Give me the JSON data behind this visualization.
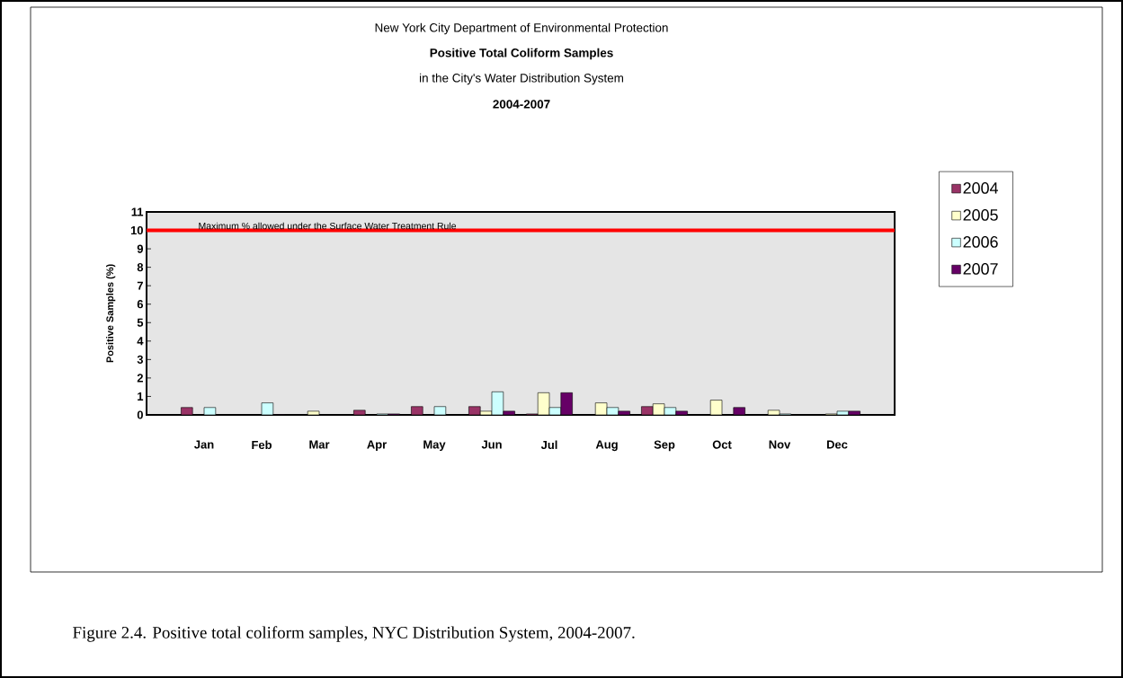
{
  "chart_data": {
    "type": "bar",
    "title": "Positive Total Coliform Samples",
    "subtitle": "in the City's Water Distribution System",
    "annotations": [
      "New York City Department of Environmental Protection",
      "2004-2007",
      "Figure 2.4.  Positive total coliform samples, NYC Distribution System, 2004-2007."
    ],
    "ylabel": "Positive Samples (%)",
    "categories": [
      "Jan",
      "Feb",
      "Mar",
      "Apr",
      "May",
      "Jun",
      "Jul",
      "Aug",
      "Sep",
      "Oct",
      "Nov",
      "Dec"
    ],
    "series": [
      {
        "name": "2004",
        "color": "#993366",
        "values": [
          0.4,
          0,
          0,
          0.25,
          0.45,
          0.45,
          0.05,
          0,
          0.45,
          0,
          0,
          0
        ]
      },
      {
        "name": "2005",
        "color": "#ffffcc",
        "values": [
          0,
          0,
          0.2,
          0,
          0,
          0.2,
          1.2,
          0.65,
          0.6,
          0.8,
          0.25,
          0.05
        ]
      },
      {
        "name": "2006",
        "color": "#ccffff",
        "values": [
          0.4,
          0.65,
          0,
          0.05,
          0.45,
          1.25,
          0.4,
          0.4,
          0.4,
          0,
          0.05,
          0.2
        ]
      },
      {
        "name": "2007",
        "color": "#660066",
        "values": [
          0,
          0.02,
          0,
          0.05,
          0,
          0.2,
          1.2,
          0.2,
          0.2,
          0.4,
          0,
          0.2
        ]
      }
    ],
    "ylim": [
      0,
      11
    ],
    "yticks": [
      0,
      1,
      2,
      3,
      4,
      5,
      6,
      7,
      8,
      9,
      10,
      11
    ],
    "ref_lines": [
      {
        "axis": "y",
        "value": 10,
        "label": "Maximum % allowed under the Surface Water Treatment Rule",
        "color": "#ff0000"
      }
    ],
    "legend": "right",
    "grid": false
  }
}
